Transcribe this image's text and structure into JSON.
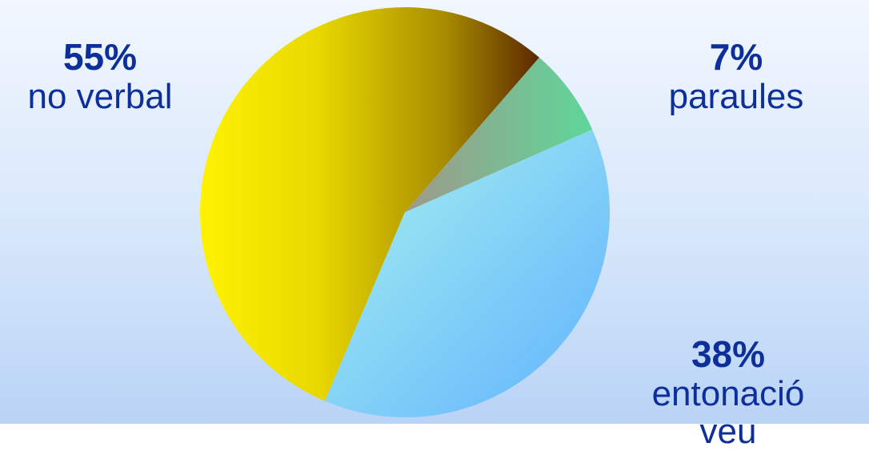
{
  "chart_data": {
    "type": "pie",
    "slices": [
      {
        "label": "no verbal",
        "value": 55,
        "value_label": "55%",
        "colors": [
          "#fff200",
          "#e8d800",
          "#a88c00",
          "#5b2800"
        ]
      },
      {
        "label": "paraules",
        "value": 7,
        "value_label": "7%",
        "colors": [
          "#a0988a",
          "#5ed79a"
        ]
      },
      {
        "label": "entonació veu",
        "value": 38,
        "value_label": "38%",
        "colors": [
          "#a8f2ee",
          "#60b2ff"
        ]
      }
    ]
  }
}
